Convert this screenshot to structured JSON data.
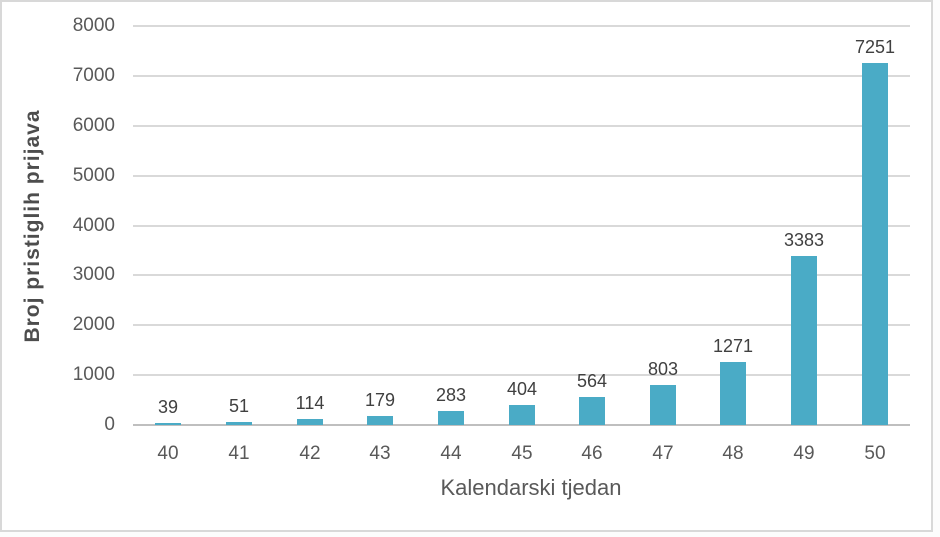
{
  "chart_data": {
    "type": "bar",
    "categories": [
      "40",
      "41",
      "42",
      "43",
      "44",
      "45",
      "46",
      "47",
      "48",
      "49",
      "50"
    ],
    "values": [
      39,
      51,
      114,
      179,
      283,
      404,
      564,
      803,
      1271,
      3383,
      7251
    ],
    "title": "",
    "xlabel": "Kalendarski tjedan",
    "ylabel": "Broj pristiglih prijava",
    "ylim": [
      0,
      8000
    ],
    "yticks": [
      0,
      1000,
      2000,
      3000,
      4000,
      5000,
      6000,
      7000,
      8000
    ],
    "grid": true,
    "legend": false,
    "data_labels": true,
    "bar_color": "#4aabc6",
    "gridline_color": "#d9d9d9",
    "axis_line_color": "#bfbfbf",
    "tick_color": "#595959",
    "data_label_color": "#404040"
  }
}
